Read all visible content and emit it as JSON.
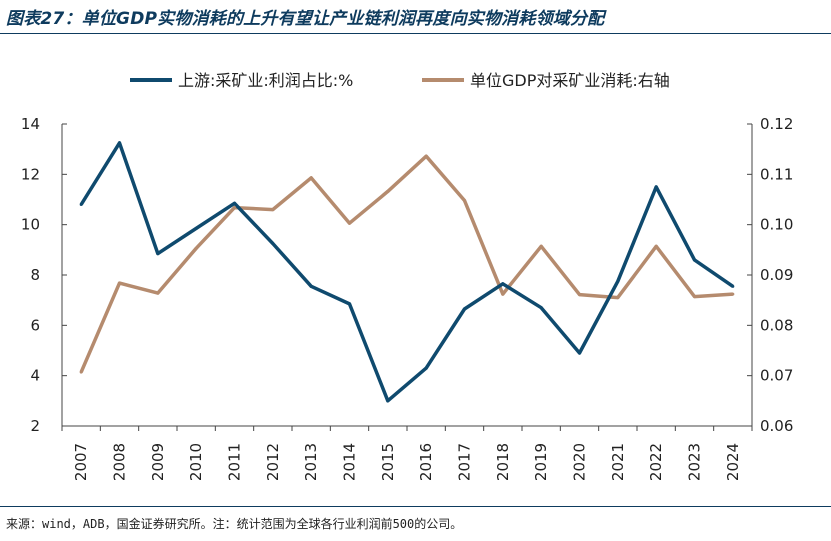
{
  "title": "图表27：单位GDP实物消耗的上升有望让产业链利润再度向实物消耗领域分配",
  "source": "来源：wind，ADB，国金证券研究所。注：统计范围为全球各行业利润前500的公司。",
  "colors": {
    "series1": "#0f4a6e",
    "series2": "#b58b6e",
    "axis": "#444444"
  },
  "chart_data": {
    "type": "line",
    "categories": [
      "2007",
      "2008",
      "2009",
      "2010",
      "2011",
      "2012",
      "2013",
      "2014",
      "2015",
      "2016",
      "2017",
      "2018",
      "2019",
      "2020",
      "2021",
      "2022",
      "2023",
      "2024"
    ],
    "series": [
      {
        "name": "上游:采矿业:利润占比:%",
        "axis": "left",
        "values": [
          10.8,
          13.25,
          8.85,
          9.85,
          10.85,
          9.25,
          7.55,
          6.85,
          3.0,
          4.3,
          6.65,
          7.65,
          6.7,
          4.9,
          7.75,
          11.5,
          8.6,
          7.55
        ]
      },
      {
        "name": "单位GDP对采矿业消耗:右轴",
        "axis": "right",
        "values": [
          0.0707,
          0.0884,
          0.0864,
          0.0953,
          0.1034,
          0.103,
          0.1093,
          0.1003,
          0.1066,
          0.1136,
          0.1048,
          0.0862,
          0.0957,
          0.0861,
          0.0855,
          0.0957,
          0.0857,
          0.0862
        ]
      }
    ],
    "left_axis": {
      "min": 2,
      "max": 14,
      "ticks": [
        "2",
        "4",
        "6",
        "8",
        "10",
        "12",
        "14"
      ]
    },
    "right_axis": {
      "min": 0.06,
      "max": 0.12,
      "ticks": [
        "0.06",
        "0.07",
        "0.08",
        "0.09",
        "0.10",
        "0.11",
        "0.12"
      ]
    },
    "xlabel": "",
    "ylabel": ""
  }
}
